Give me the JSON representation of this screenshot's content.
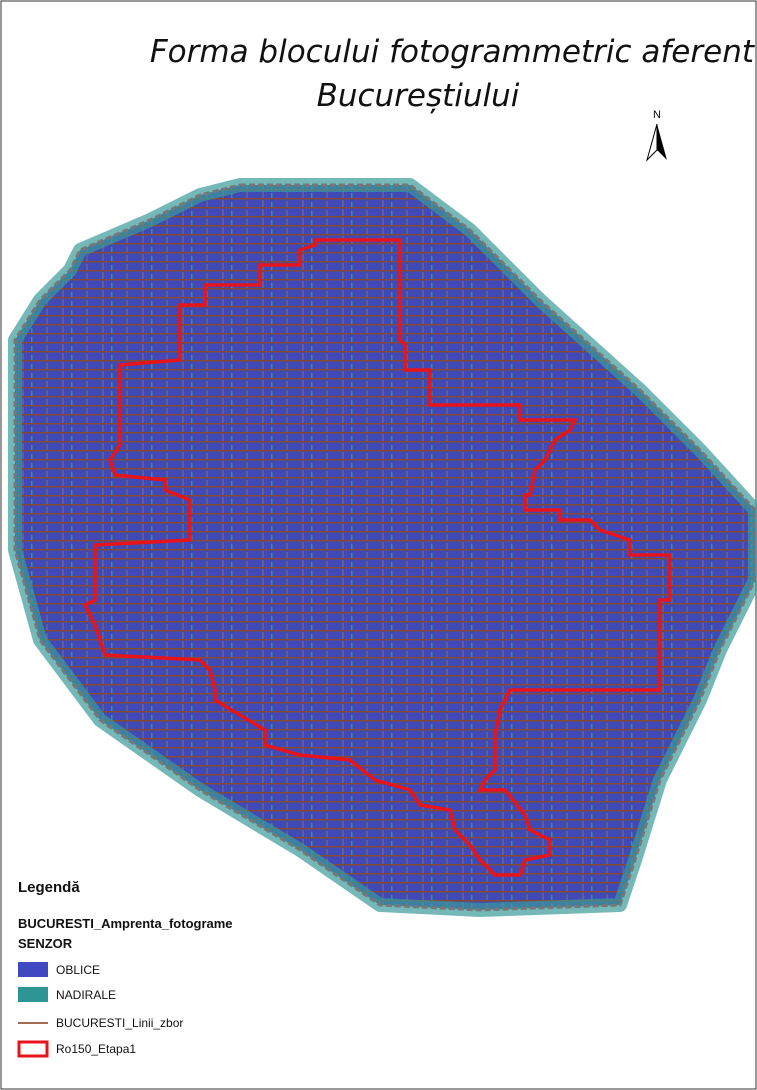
{
  "title": {
    "line1": "Forma blocului fotogrammetric aferent",
    "line2": "Bucureștiului"
  },
  "north_arrow": {
    "label": "N"
  },
  "legend": {
    "title": "Legendă",
    "layer": "BUCURESTI_Amprenta_fotograme",
    "field": "SENZOR",
    "items": [
      {
        "label": "OBLICE"
      },
      {
        "label": "NADIRALE"
      },
      {
        "label": "BUCURESTI_Linii_zbor"
      },
      {
        "label": "Ro150_Etapa1"
      }
    ]
  }
}
